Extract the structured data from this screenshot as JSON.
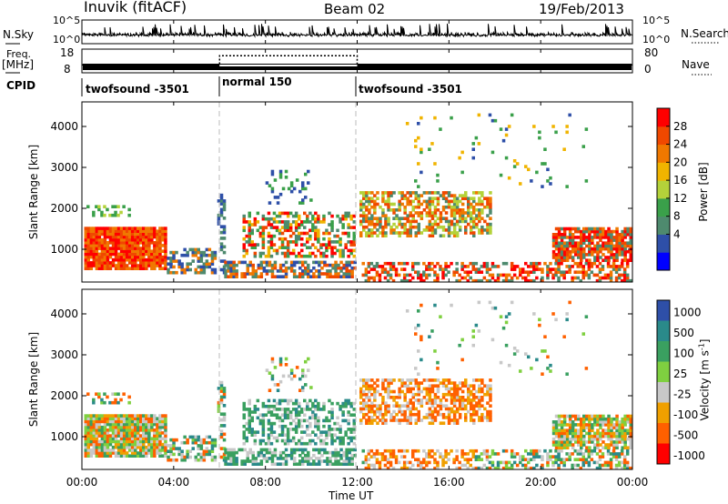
{
  "header": {
    "station": "Inuvik (fitACF)",
    "beam": "Beam 02",
    "date": "19/Feb/2013"
  },
  "left_labels": {
    "nsky": "N.Sky",
    "freq": "Freq.",
    "freq_unit": "[MHz]",
    "cpid": "CPID"
  },
  "right_labels": {
    "nsearch": "N.Search",
    "nave": "Nave"
  },
  "colors": {
    "power": [
      "#0000ff",
      "#2e4fa8",
      "#4e8a6e",
      "#3aa04a",
      "#b4d23a",
      "#f0b400",
      "#f07800",
      "#f04800",
      "#ff0000"
    ],
    "velocity": [
      "#ff0000",
      "#ff6000",
      "#f0a000",
      "#c8c8c8",
      "#7fd040",
      "#3aa060",
      "#2a8a8a",
      "#2e4fa8"
    ]
  },
  "chart_data": [
    {
      "type": "line",
      "name": "noise-panel",
      "left_axis": {
        "ticks": [
          "10^5",
          "10^0"
        ]
      },
      "right_axis": {
        "ticks": [
          "10^5",
          "10^0"
        ]
      },
      "legend": [
        "N.Sky",
        "N.Search"
      ]
    },
    {
      "type": "line",
      "name": "frequency-panel",
      "left_axis": {
        "ticks": [
          "18",
          "8"
        ],
        "ylim": [
          8,
          18
        ]
      },
      "right_axis": {
        "ticks": [
          "80",
          "0"
        ],
        "ylim": [
          0,
          80
        ]
      },
      "legend": [
        "Freq. [MHz]",
        "Nave"
      ],
      "series": [
        {
          "name": "Freq.",
          "x": [
            0,
            24
          ],
          "y": [
            10.3,
            10.3
          ]
        },
        {
          "name": "Nave",
          "x": [
            0,
            6,
            6,
            12,
            12,
            24
          ],
          "y": [
            27,
            27,
            58,
            58,
            27,
            27
          ]
        }
      ]
    },
    {
      "type": "table",
      "name": "cpid-panel",
      "segments": [
        {
          "label": "twofsound -3501",
          "start": 0,
          "end": 6
        },
        {
          "label": "normal 150",
          "start": 6,
          "end": 12
        },
        {
          "label": "twofsound -3501",
          "start": 12,
          "end": 24
        }
      ]
    },
    {
      "type": "heatmap",
      "name": "power",
      "ylabel": "Slant Range [km]",
      "yticks": [
        1000,
        2000,
        3000,
        4000
      ],
      "ylim": [
        200,
        4600
      ],
      "xlim": [
        0,
        24
      ],
      "colorbar": {
        "label": "Power [dB]",
        "ticks": [
          "28",
          "24",
          "20",
          "16",
          "12",
          "8",
          "4"
        ]
      }
    },
    {
      "type": "heatmap",
      "name": "velocity",
      "ylabel": "Slant Range [km]",
      "yticks": [
        1000,
        2000,
        3000,
        4000
      ],
      "ylim": [
        200,
        4600
      ],
      "xlim": [
        0,
        24
      ],
      "colorbar": {
        "label": "Velocity [m s^-1]",
        "ticks": [
          "1000",
          "500",
          "100",
          "25",
          "-25",
          "-100",
          "-500",
          "-1000"
        ]
      }
    }
  ],
  "xaxis": {
    "ticks": [
      "00:00",
      "04:00",
      "08:00",
      "12:00",
      "16:00",
      "20:00",
      "00:00"
    ],
    "label": "Time UT"
  }
}
